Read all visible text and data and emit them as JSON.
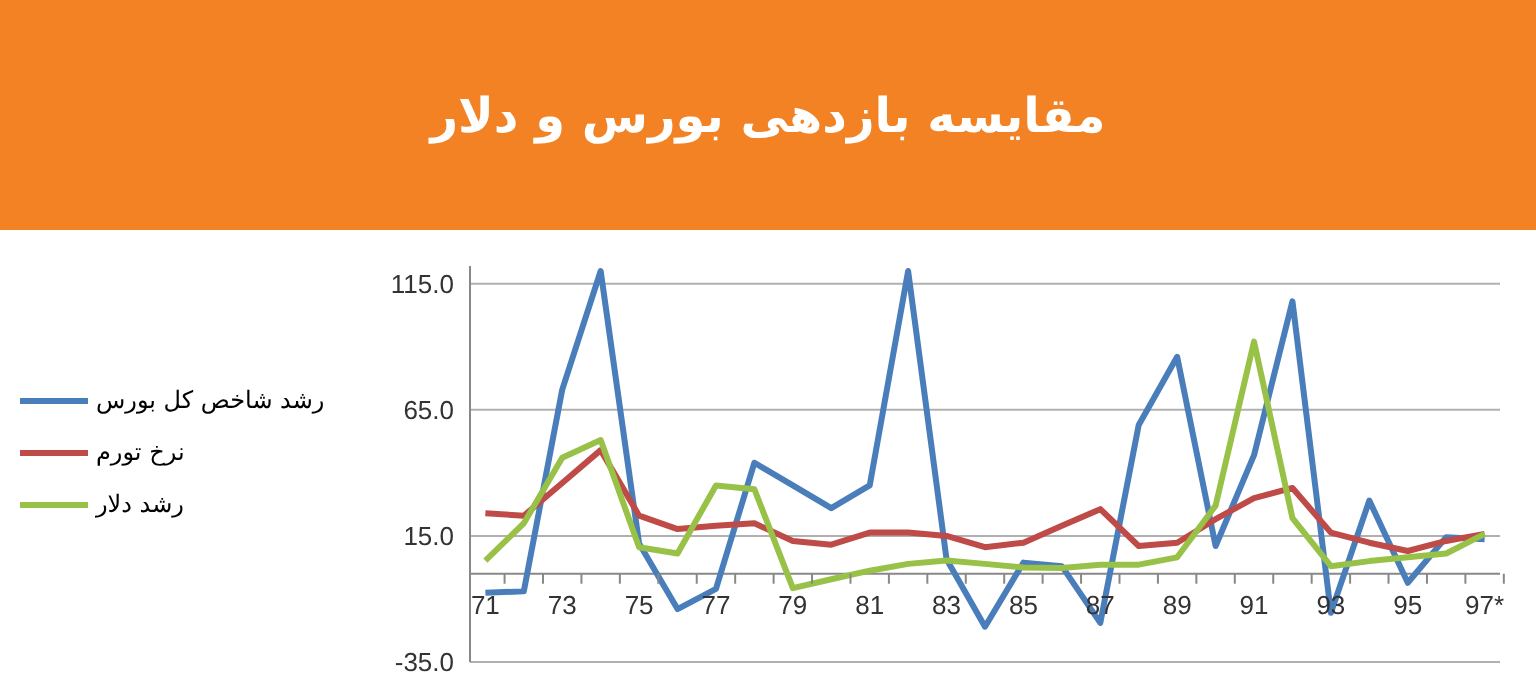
{
  "chart_data": {
    "type": "line",
    "title": "مقایسه بازدهی بورس و دلار",
    "categories": [
      "71",
      null,
      "73",
      null,
      "75",
      null,
      "77",
      null,
      "79",
      null,
      "81",
      null,
      "83",
      null,
      "85",
      null,
      "87",
      null,
      "89",
      null,
      "91",
      null,
      "93",
      null,
      "95",
      null,
      "97*"
    ],
    "series": [
      {
        "name": "رشد شاخص کل بورس",
        "color": "#4a7ebb",
        "values": [
          -7.5,
          -7,
          73,
          120,
          12,
          -14,
          -6,
          44,
          35,
          26,
          35,
          120,
          5.7,
          -21,
          4.4,
          3,
          -19.5,
          59,
          86,
          11,
          47,
          108,
          -15.5,
          29,
          -3.6,
          14.5,
          13.7
        ]
      },
      {
        "name": "نرخ تورم",
        "color": "#be4b48",
        "values": [
          24,
          23,
          36,
          49,
          23,
          17.7,
          19,
          20,
          13,
          11.5,
          16.3,
          16.3,
          15,
          10.5,
          12.3,
          19,
          25.6,
          11,
          12.3,
          21.6,
          30,
          34,
          16.3,
          12.3,
          9,
          13,
          15.8
        ]
      },
      {
        "name": "رشد دلار",
        "color": "#98c147",
        "values": [
          5.2,
          20,
          46,
          53,
          10.5,
          8,
          35,
          33.5,
          -5.7,
          -2.2,
          1.2,
          3.9,
          5.2,
          3.9,
          2.5,
          2.3,
          3.6,
          3.6,
          6.5,
          27,
          92,
          22,
          3,
          5,
          6.5,
          8,
          15.8
        ]
      }
    ],
    "ylim": [
      -35,
      122
    ],
    "yticks": [
      {
        "value": -35,
        "label": "-35.0"
      },
      {
        "value": 15,
        "label": "15.0"
      },
      {
        "value": 65,
        "label": "65.0"
      },
      {
        "value": 115,
        "label": "115.0"
      }
    ],
    "grid": "y",
    "legend": "left",
    "marker": "none",
    "line_style": "solid"
  }
}
